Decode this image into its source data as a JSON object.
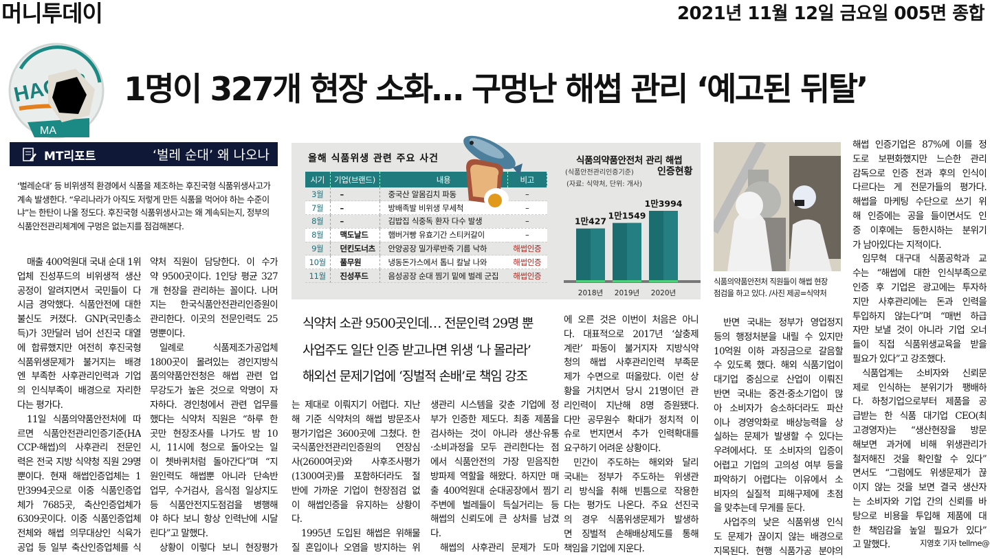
{
  "masthead": {
    "paper": "머니투데이",
    "date": "2021년 11월 12일 금요일 005면 종합"
  },
  "logo": {
    "text": "HACCP",
    "text2": "MA"
  },
  "headline": "1명이 327개 현장 소화… 구멍난 해썹 관리 ‘예고된 뒤탈’",
  "mt_report": {
    "label": "MT리포트",
    "title": "‘벌레 순대’ 왜 나오나"
  },
  "lede": "‘벌레순대’ 등 비위생적 환경에서 식품을 제조하는 후진국형 식품위생사고가 계속 발생한다. “우리나라가 아직도 저렇게 만든 식품을 먹어야 하는 수준이냐”는 한탄이 나올 정도다. 후진국형 식품위생사고는 왜 계속되는지, 정부의 식품안전관리체계에 구멍은 없는지를 점검해본다.",
  "incident_table": {
    "title": "올해 식품위생 관련 주요 사건",
    "headers": [
      "시기",
      "기업(브랜드)",
      "내용",
      "비고"
    ],
    "rows": [
      [
        "3월",
        "–",
        "중국산 알몸김치 파동",
        "–"
      ],
      [
        "7월",
        "–",
        "방배족발 비위생 무세척",
        "–"
      ],
      [
        "8월",
        "–",
        "김밥집 식중독 환자 다수 발생",
        "–"
      ],
      [
        "8월",
        "맥도날드",
        "햄버거빵 유효기간 스티커갈이",
        "–"
      ],
      [
        "9월",
        "던킨도너츠",
        "안양공장 밀가루반죽 기름 낙하",
        "해썹인증"
      ],
      [
        "10월",
        "풀무원",
        "냉동돈가스에서 톱니 칼날 나와",
        "해썹인증"
      ],
      [
        "11월",
        "진성푸드",
        "음성공장 순대 찜기 밑에 벌레 군집",
        "해썹인증"
      ]
    ],
    "highlight_color": "#b3231d",
    "header_color": "#1f7b7d"
  },
  "chart_data": {
    "type": "bar",
    "title": "식품의약품안전처 관리 해썹",
    "subtitle_note": "(식품안전관리인증기준)",
    "subtitle": "인증현황",
    "source": "(자료: 식약처, 단위: 개사)",
    "categories": [
      "2018년",
      "2019년",
      "2020년"
    ],
    "values": [
      10427,
      11549,
      13994
    ],
    "value_labels": [
      "1만427",
      "1만1549",
      "1만3994"
    ],
    "ylim": [
      0,
      16000
    ],
    "bar_color": "#1b6d70"
  },
  "sub_headlines": [
    "식약처 소관 9500곳인데… 전문인력 29명 뿐",
    "사업주도 일단 인증 받고나면 위생 ‘나 몰라라’",
    "해외선 문제기업에 ‘징벌적 손배’로 책임 강조"
  ],
  "photo_caption": [
    "식품의약품안전처 직원들이 해썹 현장",
    "점검을 하고 있다. /사진 제공=식약처"
  ],
  "byline": "지영호 기자 tellme@",
  "columns": [
    [
      {
        "indent": true,
        "end": true,
        "lines": [
          "매출 400억원대 국내 순대 1위",
          "업체 진성푸드의 비위생적 생산",
          "공정이 알려지면서 국민들이 다",
          "시금 경악했다. 식품안전에 대한",
          "불신도 커졌다. GNP(국민총소",
          "득)가 3만달러 넘어 선진국 대열",
          "에 합류했지만 여전히 후진국형",
          "식품위생문제가 불거지는 배경",
          "엔 부족한 사후관리인력과 기업",
          "의 인식부족이 배경으로 자리한",
          "다는 평가다."
        ]
      },
      {
        "indent": true,
        "end": false,
        "lines": [
          "11일 식품의약품안전처에 따",
          "르면 식품안전관리인증기준(HA",
          "CCP·해썹)의 사후관리 전문인",
          "력은 전국 지방 식약청 직원 29명",
          "뿐이다. 현재 해썹인증업체는 1",
          "만3994곳으로 이중 식품인증업",
          "체가 7685곳, 축산인증업체가",
          "6309곳이다. 이중 식품인증업체",
          "전체와 해썹 의무대상인 식육가",
          "공업 등 일부 축산인증업체를 식"
        ]
      }
    ],
    [
      {
        "indent": false,
        "end": true,
        "lines": [
          "약처 직원이 담당한다. 이 수가",
          "약 9500곳이다. 1인당 평균 327",
          "개 현장을 관리하는 꼴이다. 나머",
          "지는 한국식품안전관리인증원이",
          "관리한다. 이곳의 전문인력도 25",
          "명뿐이다."
        ]
      },
      {
        "indent": true,
        "end": true,
        "lines": [
          "일례로 식품제조가공업체",
          "1800곳이 몰려있는 경인지방식",
          "품의약품안전청은 해썹 관련 업",
          "무강도가 높은 것으로 악명이 자",
          "자하다. 경인청에서 관련 업무를",
          "했다는 식약처 직원은 “하루 한",
          "곳만 현장조사를 나가도 밤 10",
          "시, 11시에 청으로 돌아오는 일",
          "이 쳇바퀴처럼 돌아간다”며 “지",
          "원인력도 해썹뿐 아니라 단속반",
          "업무, 수거검사, 음식점 일상지도",
          "등 식품안전지도점검을 병행해",
          "야 하다 보니 항상 인력난에 시달",
          "린다”고 말했다."
        ]
      },
      {
        "indent": true,
        "end": false,
        "lines": [
          "상황이 이렇다 보니 현장평가"
        ]
      }
    ],
    [
      {
        "indent": false,
        "end": true,
        "lines": [
          "는 제대로 이뤄지기 어렵다. 지난",
          "해 기준 식약처의 해썹 방문조사",
          "평가기업은 3600곳에 그쳤다. 한",
          "국식품안전관리인증원의 연장심",
          "사(2600여곳)와 사후조사평가",
          "(1300여곳)를 포함하더라도 절",
          "반에 가까운 기업이 현장점검 없",
          "이 해썹인증을 유지하는 상황이",
          "다."
        ]
      },
      {
        "indent": true,
        "end": false,
        "lines": [
          "1995년 도입된 해썹은 위해물",
          "질 혼입이나 오염을 방지하는 위"
        ]
      }
    ],
    [
      {
        "indent": false,
        "end": true,
        "lines": [
          "생관리 시스템을 갖춘 기업에 정",
          "부가 인증한 제도다. 최종 제품을",
          "검사하는 것이 아니라 생산·유통",
          "·소비과정을 모두 관리한다는 점",
          "에서 식품안전의 가장 믿음직한",
          "방파제 역할을 해왔다. 하지만 매",
          "출 400억원대 순대공장에서 찜기",
          "주변에 벌레들이 득실거리는 등",
          "해썹의 신뢰도에 큰 상처를 남겼",
          "다."
        ]
      },
      {
        "indent": true,
        "end": false,
        "lines": [
          "해썹의 사후관리 문제가 도마"
        ]
      }
    ],
    [
      {
        "indent": false,
        "end": true,
        "lines": [
          "에 오른 것은 이번이 처음은 아니",
          "다. 대표적으로 2017년 ‘살충제",
          "계란’ 파동이 불거지자 지방식약",
          "청의 해썹 사후관리인력 부족문",
          "제가 수면으로 떠올랐다. 이런 상",
          "황을 거치면서 당시 21명이던 관",
          "리인력이 지난해 8명 증원됐다.",
          "다만 공무원수 확대가 정치적 이",
          "슈로 번지면서 추가 인력확대를",
          "요구하기 어려운 상황이다."
        ]
      },
      {
        "indent": true,
        "end": true,
        "lines": [
          "민간이 주도하는 해외와 달리",
          "국내는 정부가 주도하는 위생관",
          "리 방식을 취해 빈틈으로 작용한",
          "다는 평가도 나온다. 주요 선진국",
          "의 경우 식품위생문제가 발생하",
          "면 징벌적 손해배상제도를 통해",
          "책임을 기업에 지운다."
        ]
      }
    ],
    [
      {
        "indent": true,
        "end": true,
        "lines": [
          "반면 국내는 정부가 영업정지",
          "등의 행정처분을 내릴 수 있지만",
          "10억원 이하 과징금으로 갈음할",
          "수 있도록 했다. 해외 식품기업이",
          "대기업 중심으로 산업이 이뤄진",
          "반면 국내는 중견·중소기업이 많",
          "아 소비자가 승소하더라도 파산",
          "이나 경영악화로 배상능력을 상",
          "실하는 문제가 발생할 수 있다는",
          "우려에서다. 또 소비자의 입증이",
          "어렵고 기업의 고의성 여부 등을",
          "파악하기 어렵다는 이유에서 소",
          "비자의 실질적 피해구제에 초점",
          "을 맞추는데 무게를 둔다."
        ]
      },
      {
        "indent": true,
        "end": false,
        "lines": [
          "사업주의 낮은 식품위생 인식",
          "도 문제가 끊이지 않는 배경으로",
          "지목된다. 현행 식품가공 분야의"
        ]
      }
    ],
    [
      {
        "indent": false,
        "end": true,
        "lines": [
          "해썹 인증기업은 87%에 이를 정",
          "도로 보편화했지만 느슨한 관리",
          "감독으로 인증 전과 후의 인식이",
          "다르다는 게 전문가들의 평가다.",
          "해썹을 마케팅 수단으로 쓰기 위",
          "해 인증에는 공을 들이면서도 인",
          "증 이후에는 등한시하는 분위기",
          "가 남아있다는 지적이다."
        ]
      },
      {
        "indent": true,
        "end": true,
        "lines": [
          "임무혁 대구대 식품공학과 교",
          "수는 “해썹에 대한 인식부족으로",
          "인증 후 기업은 광고에는 투자하",
          "지만 사후관리에는 돈과 인력을",
          "투입하지 않는다”며 “매번 하급",
          "자만 보낼 것이 아니라 기업 오너",
          "들이 직접 식품위생교육을 받을",
          "필요가 있다”고 강조했다."
        ]
      },
      {
        "indent": true,
        "end": true,
        "lines": [
          "식품업계는 소비자와 신뢰문",
          "제로 인식하는 분위기가 팽배하",
          "다. 하청기업으로부터 제품을 공",
          "급받는 한 식품 대기업 CEO(최",
          "고경영자)는 “생산현장을 방문",
          "해보면 과거에 비해 위생관리가",
          "철저해진 것을 확인할 수 있다”",
          "면서도 “그럼에도 위생문제가 끊",
          "이지 않는 것을 보면 결국 생산자",
          "는 소비자와 기업 간의 신뢰를 바",
          "탕으로 비용을 투입해 제품에 대",
          "한 책임감을 높일 필요가 있다”",
          "고 말했다."
        ]
      }
    ]
  ]
}
